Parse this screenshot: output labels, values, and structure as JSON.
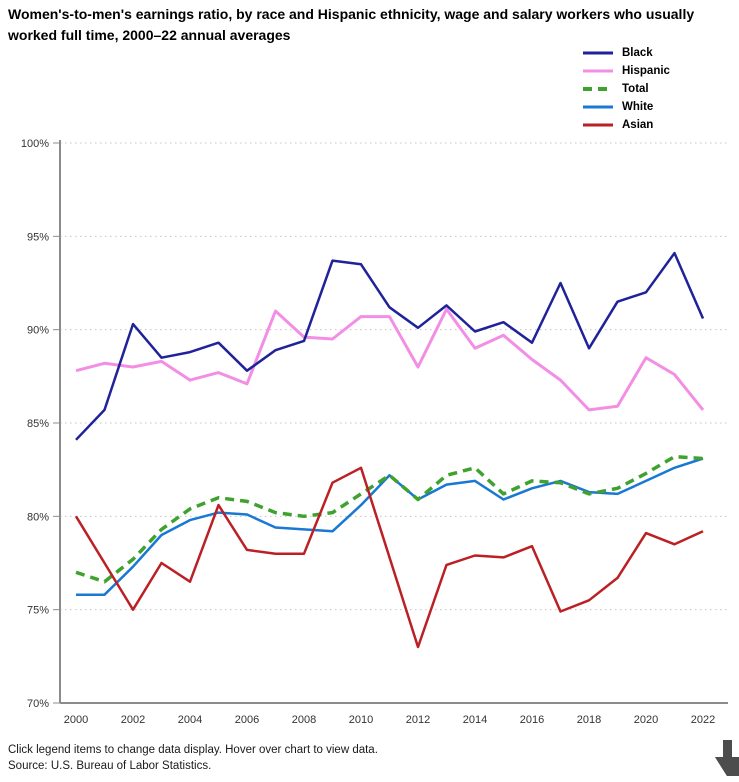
{
  "title": "Women's-to-men's earnings ratio, by race and Hispanic ethnicity, wage and salary workers who usually worked full time, 2000–22 annual averages",
  "footer": {
    "hint": "Click legend items to change data display. Hover over chart to view data.",
    "source": "Source: U.S. Bureau of Labor Statistics."
  },
  "icons": {
    "bottom_right": "cursor-down-arrow-icon"
  },
  "colors": {
    "black_series": "#202299",
    "hispanic_series": "#f28fe4",
    "total_series": "#3fa22f",
    "white_series": "#1878d2",
    "asian_series": "#bb2024",
    "grid": "#c4c4c4",
    "axis": "#8c8c8c",
    "tick_text": "#333333"
  },
  "chart_data": {
    "type": "line",
    "title": "Women's-to-men's earnings ratio, by race and Hispanic ethnicity, wage and salary workers who usually worked full time, 2000–22 annual averages",
    "xlabel": "",
    "ylabel": "",
    "ylim": [
      70,
      100
    ],
    "y_ticks": [
      70,
      75,
      80,
      85,
      90,
      95,
      100
    ],
    "y_tick_labels": [
      "70%",
      "75%",
      "80%",
      "85%",
      "90%",
      "95%",
      "100%"
    ],
    "x_tick_labels": [
      "2000",
      "2002",
      "2004",
      "2006",
      "2008",
      "2010",
      "2012",
      "2014",
      "2016",
      "2018",
      "2020",
      "2022"
    ],
    "grid": "horizontal dotted",
    "legend_position": "top-right",
    "x": [
      2000,
      2001,
      2002,
      2003,
      2004,
      2005,
      2006,
      2007,
      2008,
      2009,
      2010,
      2011,
      2012,
      2013,
      2014,
      2015,
      2016,
      2017,
      2018,
      2019,
      2020,
      2021,
      2022
    ],
    "series": [
      {
        "name": "Black",
        "color": "#202299",
        "style": "solid",
        "values": [
          84.1,
          85.7,
          90.3,
          88.5,
          88.8,
          89.3,
          87.8,
          88.9,
          89.4,
          93.7,
          93.5,
          91.2,
          90.1,
          91.3,
          89.9,
          90.4,
          89.3,
          92.5,
          89.0,
          91.5,
          92.0,
          94.1,
          90.6
        ]
      },
      {
        "name": "Hispanic",
        "color": "#f28fe4",
        "style": "solid",
        "values": [
          87.8,
          88.2,
          88.0,
          88.3,
          87.3,
          87.7,
          87.1,
          91.0,
          89.6,
          89.5,
          90.7,
          90.7,
          88.0,
          91.1,
          89.0,
          89.7,
          88.4,
          87.3,
          85.7,
          85.9,
          88.5,
          87.6,
          85.7
        ]
      },
      {
        "name": "Total",
        "color": "#3fa22f",
        "style": "dashed",
        "values": [
          77.0,
          76.5,
          77.7,
          79.3,
          80.4,
          81.0,
          80.8,
          80.2,
          80.0,
          80.2,
          81.2,
          82.2,
          80.9,
          82.2,
          82.6,
          81.2,
          81.9,
          81.8,
          81.2,
          81.5,
          82.3,
          83.2,
          83.1
        ]
      },
      {
        "name": "White",
        "color": "#1878d2",
        "style": "solid",
        "values": [
          75.8,
          75.8,
          77.3,
          79.0,
          79.8,
          80.2,
          80.1,
          79.4,
          79.3,
          79.2,
          80.6,
          82.2,
          80.9,
          81.7,
          81.9,
          80.9,
          81.5,
          81.9,
          81.3,
          81.2,
          81.9,
          82.6,
          83.1
        ]
      },
      {
        "name": "Asian",
        "color": "#bb2024",
        "style": "solid",
        "values": [
          80.0,
          77.5,
          75.0,
          77.5,
          76.5,
          80.6,
          78.2,
          78.0,
          78.0,
          81.8,
          82.6,
          77.8,
          73.0,
          77.4,
          77.9,
          77.8,
          78.4,
          74.9,
          75.5,
          76.7,
          79.1,
          78.5,
          79.2
        ]
      }
    ]
  }
}
